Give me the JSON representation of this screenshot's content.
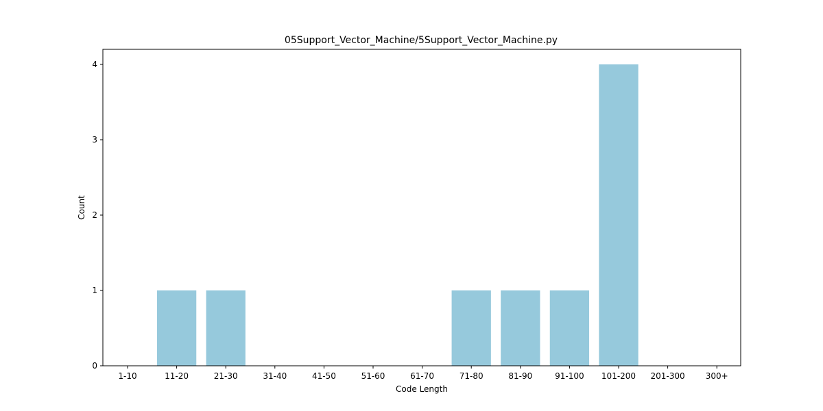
{
  "chart_data": {
    "type": "bar",
    "title": "05Support_Vector_Machine/5Support_Vector_Machine.py",
    "xlabel": "Code Length",
    "ylabel": "Count",
    "categories": [
      "1-10",
      "11-20",
      "21-30",
      "31-40",
      "41-50",
      "51-60",
      "61-70",
      "71-80",
      "81-90",
      "91-100",
      "101-200",
      "201-300",
      "300+"
    ],
    "values": [
      0,
      1,
      1,
      0,
      0,
      0,
      0,
      1,
      1,
      1,
      4,
      0,
      0
    ],
    "yticks": [
      0,
      1,
      2,
      3,
      4
    ],
    "ylim": [
      0,
      4.2
    ],
    "bar_color": "#96c9dc",
    "grid": false,
    "legend": "none"
  }
}
